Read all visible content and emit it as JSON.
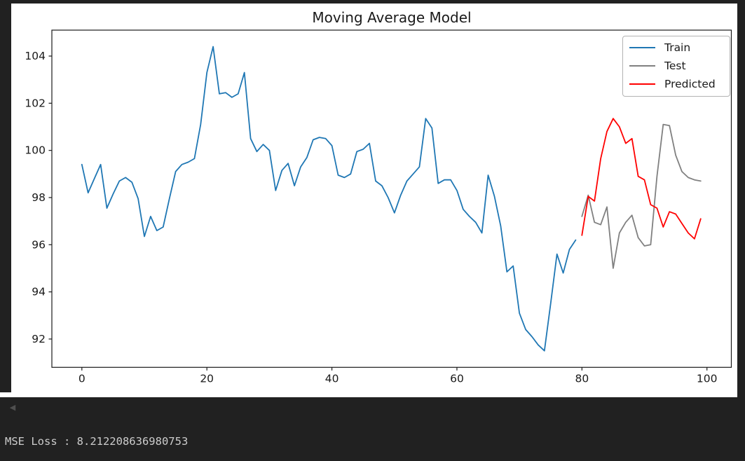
{
  "window": {
    "background_color": "#212121",
    "figure_background": "#ffffff"
  },
  "icons": {
    "collapse_arrow": "◀"
  },
  "status_bar": {
    "mse_text": "MSE Loss : 8.212208636980753"
  },
  "chart_data": {
    "type": "line",
    "title": "Moving Average Model",
    "xlabel": "",
    "ylabel": "",
    "xlim": [
      -4.8,
      103.9
    ],
    "ylim": [
      90.8,
      105.1
    ],
    "x_ticks": [
      0,
      20,
      40,
      60,
      80,
      100
    ],
    "y_ticks": [
      92,
      94,
      96,
      98,
      100,
      102,
      104
    ],
    "grid": false,
    "legend": {
      "position": "upper right",
      "entries": [
        "Train",
        "Test",
        "Predicted"
      ]
    },
    "axis_color": "#1a1a1a",
    "series": [
      {
        "name": "Train",
        "color": "#1f77b4",
        "x_start": 0,
        "values": [
          99.4,
          98.2,
          98.8,
          99.4,
          97.55,
          98.15,
          98.7,
          98.85,
          98.65,
          97.95,
          96.35,
          97.2,
          96.6,
          96.75,
          97.95,
          99.1,
          99.4,
          99.5,
          99.65,
          101.1,
          103.3,
          104.4,
          102.4,
          102.45,
          102.25,
          102.4,
          103.3,
          100.5,
          99.95,
          100.25,
          100.0,
          98.3,
          99.15,
          99.45,
          98.5,
          99.3,
          99.7,
          100.45,
          100.55,
          100.5,
          100.2,
          98.95,
          98.85,
          99.0,
          99.95,
          100.05,
          100.3,
          98.7,
          98.5,
          98.0,
          97.35,
          98.1,
          98.7,
          99.0,
          99.3,
          101.35,
          100.95,
          98.6,
          98.75,
          98.75,
          98.3,
          97.5,
          97.2,
          96.95,
          96.5,
          98.95,
          98.05,
          96.8,
          94.85,
          95.1,
          93.1,
          92.4,
          92.1,
          91.75,
          91.5,
          93.5,
          95.6,
          94.8,
          95.8,
          96.2
        ]
      },
      {
        "name": "Test",
        "color": "#808080",
        "x_start": 80,
        "values": [
          97.2,
          98.1,
          96.95,
          96.85,
          97.6,
          95.0,
          96.5,
          96.95,
          97.25,
          96.3,
          95.95,
          96.0,
          98.9,
          101.1,
          101.05,
          99.8,
          99.1,
          98.85,
          98.75,
          98.7
        ]
      },
      {
        "name": "Predicted",
        "color": "#ff0000",
        "x_start": 80,
        "values": [
          96.4,
          98.05,
          97.85,
          99.65,
          100.8,
          101.35,
          101.0,
          100.3,
          100.5,
          98.9,
          98.75,
          97.7,
          97.55,
          96.75,
          97.4,
          97.3,
          96.9,
          96.5,
          96.25,
          97.1
        ]
      }
    ]
  }
}
